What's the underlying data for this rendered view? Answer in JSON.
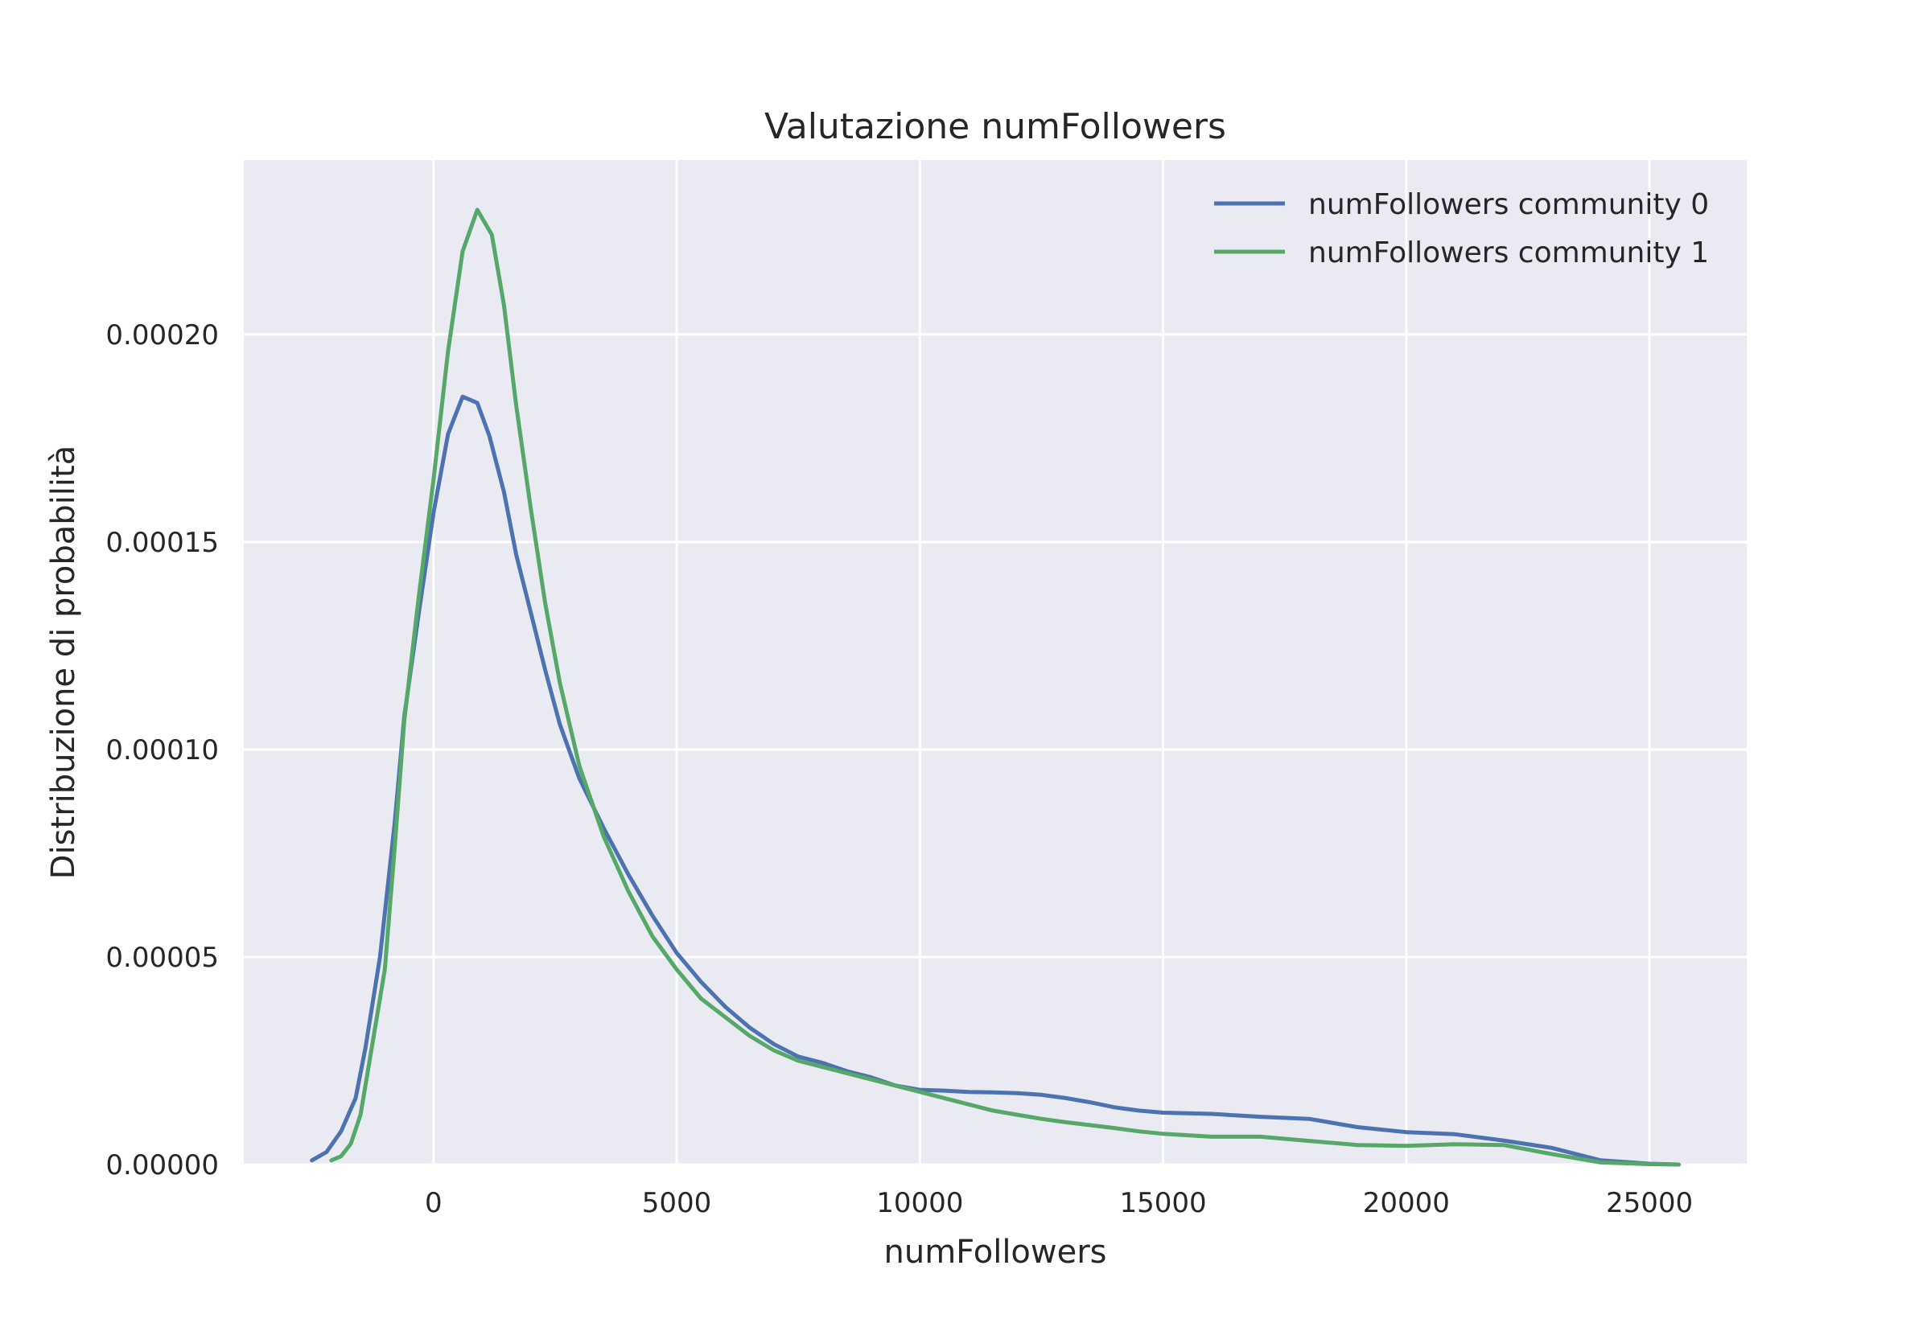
{
  "chart_data": {
    "type": "line",
    "title": "Valutazione numFollowers",
    "xlabel": "numFollowers",
    "ylabel": "Distribuzione di probabilità",
    "xlim": [
      -3900,
      27000
    ],
    "ylim": [
      0,
      0.000242
    ],
    "xticks": [
      0,
      5000,
      10000,
      15000,
      20000,
      25000
    ],
    "xtick_labels": [
      "0",
      "5000",
      "10000",
      "15000",
      "20000",
      "25000"
    ],
    "yticks": [
      0,
      5e-05,
      0.0001,
      0.00015,
      0.0002
    ],
    "ytick_labels": [
      "0.00000",
      "0.00005",
      "0.00010",
      "0.00015",
      "0.00020"
    ],
    "grid": true,
    "background": "#eaeaf2",
    "legend_position": "top-right",
    "series": [
      {
        "name": "numFollowers community 0",
        "color": "#4c72b0",
        "x": [
          -2500,
          -2200,
          -1900,
          -1600,
          -1400,
          -1100,
          -800,
          -600,
          -300,
          0,
          300,
          600,
          900,
          1150,
          1450,
          1700,
          2000,
          2300,
          2600,
          3000,
          3500,
          4000,
          4500,
          5000,
          5500,
          6000,
          6500,
          7000,
          7500,
          8000,
          8500,
          9000,
          9500,
          10000,
          10500,
          11000,
          11500,
          12000,
          12500,
          13000,
          13500,
          14000,
          14500,
          15000,
          16000,
          17000,
          18000,
          19000,
          20000,
          21000,
          22000,
          23000,
          24000,
          25000,
          25600
        ],
        "y": [
          1e-06,
          3e-06,
          8e-06,
          1.6e-05,
          2.8e-05,
          5e-05,
          8.2e-05,
          0.000108,
          0.000133,
          0.000157,
          0.000176,
          0.000185,
          0.0001835,
          0.0001755,
          0.000162,
          0.000147,
          0.000133,
          0.000119,
          0.000106,
          9.3e-05,
          8.1e-05,
          7e-05,
          6e-05,
          5.1e-05,
          4.4e-05,
          3.8e-05,
          3.3e-05,
          2.9e-05,
          2.6e-05,
          2.45e-05,
          2.25e-05,
          2.1e-05,
          1.9e-05,
          1.8e-05,
          1.78e-05,
          1.75e-05,
          1.74e-05,
          1.72e-05,
          1.68e-05,
          1.6e-05,
          1.5e-05,
          1.38e-05,
          1.3e-05,
          1.25e-05,
          1.22e-05,
          1.15e-05,
          1.1e-05,
          9e-06,
          7.8e-06,
          7.3e-06,
          5.8e-06,
          4e-06,
          1e-06,
          2e-07,
          0.0
        ],
        "label_index": 0
      },
      {
        "name": "numFollowers community 1",
        "color": "#55a868",
        "x": [
          -2100,
          -1900,
          -1700,
          -1500,
          -1300,
          -1000,
          -800,
          -600,
          -300,
          0,
          300,
          600,
          900,
          1200,
          1450,
          1700,
          2000,
          2300,
          2600,
          3000,
          3500,
          4000,
          4500,
          5000,
          5500,
          6000,
          6500,
          7000,
          7500,
          8000,
          8500,
          9000,
          9500,
          10000,
          10500,
          11000,
          11500,
          12000,
          12500,
          13000,
          13500,
          14000,
          14500,
          15000,
          16000,
          17000,
          18000,
          19000,
          20000,
          21000,
          22000,
          23000,
          24000,
          25000,
          25600
        ],
        "y": [
          1e-06,
          2e-06,
          5e-06,
          1.2e-05,
          2.6e-05,
          4.7e-05,
          7.6e-05,
          0.000107,
          0.000137,
          0.000165,
          0.000196,
          0.00022,
          0.00023,
          0.000224,
          0.000207,
          0.000183,
          0.000158,
          0.000135,
          0.000116,
          9.6e-05,
          7.9e-05,
          6.6e-05,
          5.5e-05,
          4.7e-05,
          4e-05,
          3.55e-05,
          3.1e-05,
          2.75e-05,
          2.5e-05,
          2.35e-05,
          2.2e-05,
          2.05e-05,
          1.9e-05,
          1.75e-05,
          1.6e-05,
          1.45e-05,
          1.3e-05,
          1.2e-05,
          1.1e-05,
          1.02e-05,
          9.5e-06,
          8.8e-06,
          8e-06,
          7.4e-06,
          6.7e-06,
          6.7e-06,
          5.7e-06,
          4.7e-06,
          4.5e-06,
          4.9e-06,
          4.7e-06,
          2.5e-06,
          5e-07,
          1e-07,
          0.0
        ],
        "label_index": 1
      }
    ]
  }
}
